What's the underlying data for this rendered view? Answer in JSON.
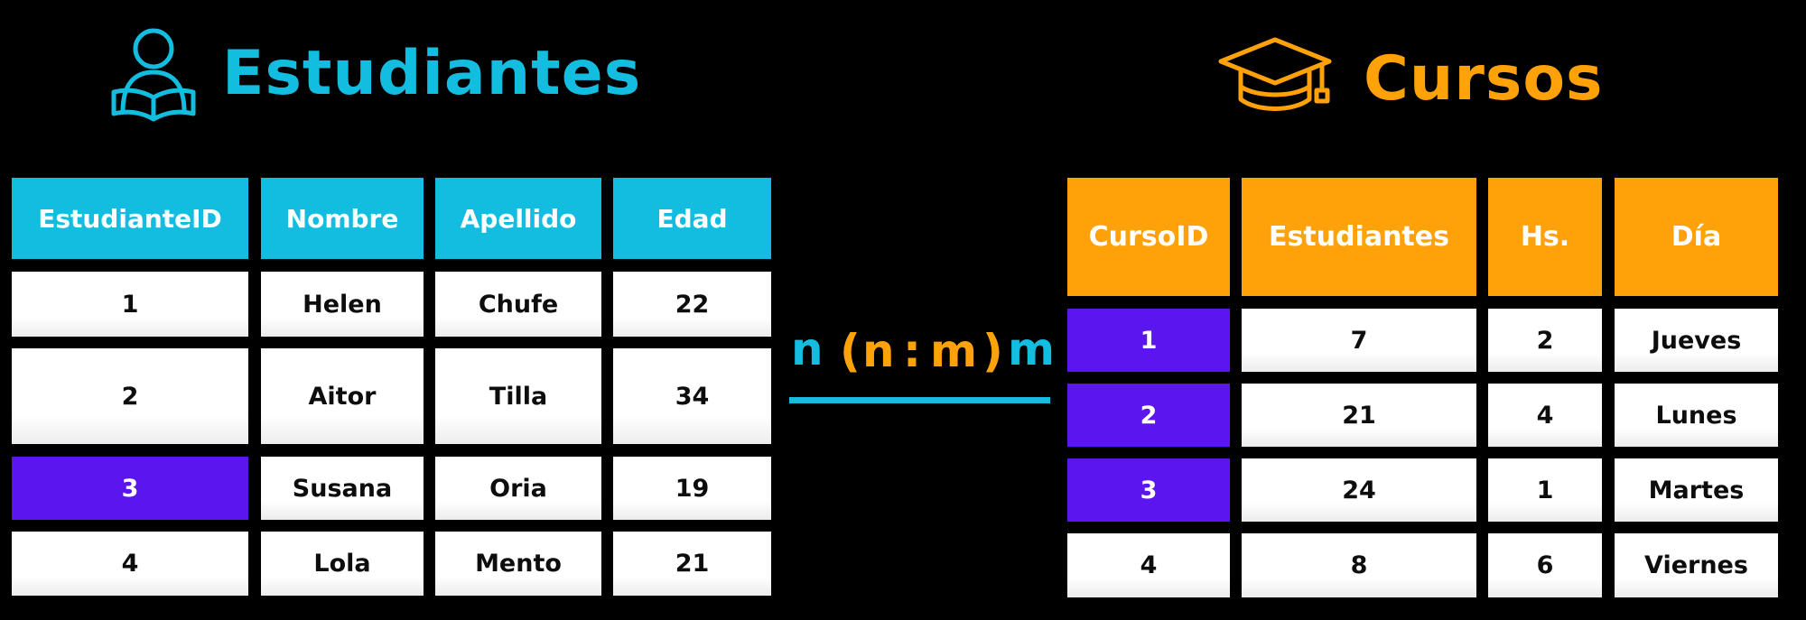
{
  "left": {
    "title": "Estudiantes",
    "icon": "student-reading-icon",
    "headers": [
      "EstudianteID",
      "Nombre",
      "Apellido",
      "Edad"
    ],
    "rows": [
      [
        "1",
        "Helen",
        "Chufe",
        "22"
      ],
      [
        "2",
        "Aitor",
        "Tilla",
        "34"
      ],
      [
        "3",
        "Susana",
        "Oria",
        "19"
      ],
      [
        "4",
        "Lola",
        "Mento",
        "21"
      ]
    ],
    "highlighted_row": "3"
  },
  "right": {
    "title": "Cursos",
    "icon": "graduation-cap-icon",
    "headers": [
      "CursoID",
      "Estudiantes",
      "Hs.",
      "Día"
    ],
    "rows": [
      [
        "1",
        "7",
        "2",
        "Jueves"
      ],
      [
        "2",
        "21",
        "4",
        "Lunes"
      ],
      [
        "3",
        "24",
        "1",
        "Martes"
      ],
      [
        "4",
        "8",
        "6",
        "Viernes"
      ]
    ],
    "highlighted_ids": [
      "1",
      "2",
      "3"
    ]
  },
  "relation": {
    "left": "n",
    "open": "(",
    "a": "n",
    "sep": ":",
    "b": "m",
    "close": ")",
    "right": "m"
  },
  "colors": {
    "blue": "#13bde0",
    "orange": "#ffa20a",
    "purple": "#5b15ef",
    "background": "#000000"
  }
}
